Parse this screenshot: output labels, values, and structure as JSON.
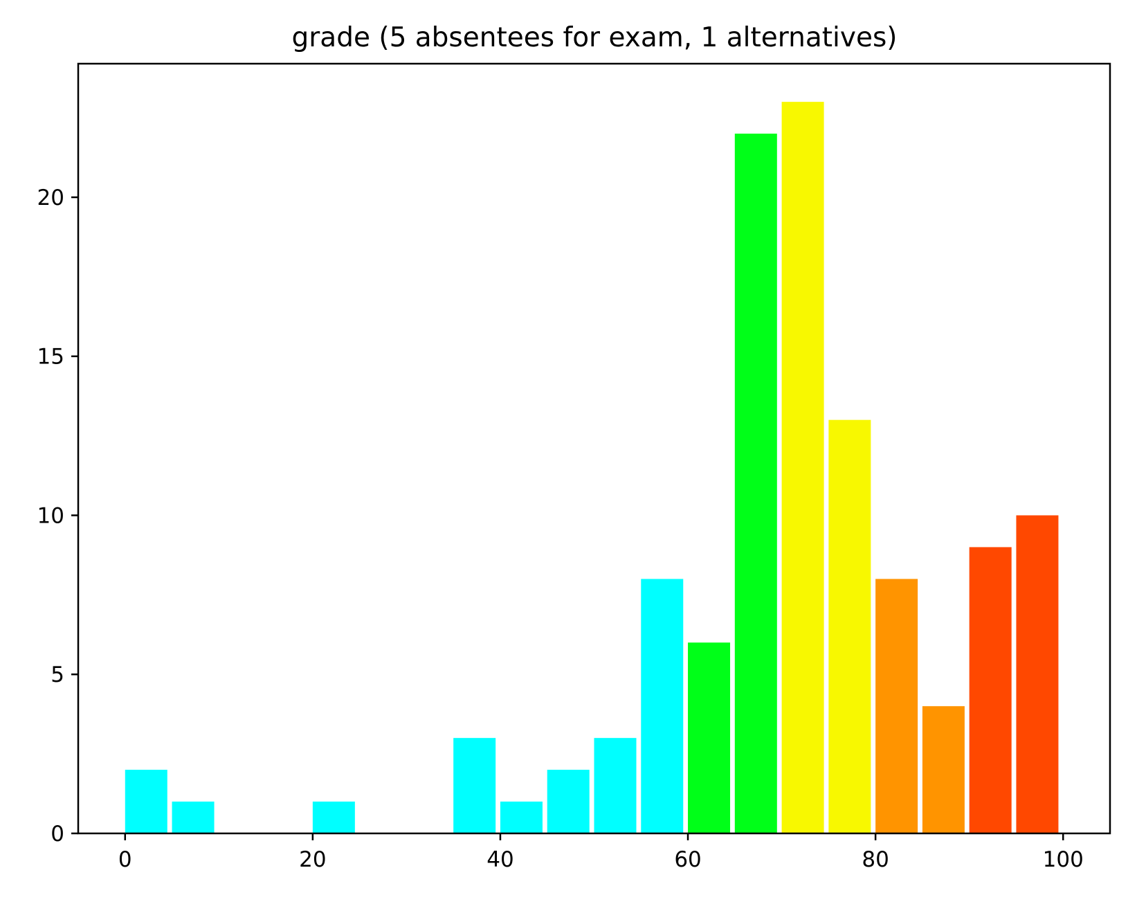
{
  "chart_data": {
    "type": "bar",
    "title": "grade (5 absentees for exam, 1 alternatives)",
    "xlabel": "",
    "ylabel": "",
    "xlim": [
      -5,
      105
    ],
    "ylim": [
      0,
      24.2
    ],
    "xticks": [
      0,
      20,
      40,
      60,
      80,
      100
    ],
    "yticks": [
      0,
      5,
      10,
      15,
      20
    ],
    "bin_width": 5,
    "bars": [
      {
        "x_start": 0,
        "x_end": 5,
        "value": 2,
        "color": "#00ffff"
      },
      {
        "x_start": 5,
        "x_end": 10,
        "value": 1,
        "color": "#00ffff"
      },
      {
        "x_start": 10,
        "x_end": 15,
        "value": 0,
        "color": "#00ffff"
      },
      {
        "x_start": 15,
        "x_end": 20,
        "value": 0,
        "color": "#00ffff"
      },
      {
        "x_start": 20,
        "x_end": 25,
        "value": 1,
        "color": "#00ffff"
      },
      {
        "x_start": 25,
        "x_end": 30,
        "value": 0,
        "color": "#00ffff"
      },
      {
        "x_start": 30,
        "x_end": 35,
        "value": 0,
        "color": "#00ffff"
      },
      {
        "x_start": 35,
        "x_end": 40,
        "value": 3,
        "color": "#00ffff"
      },
      {
        "x_start": 40,
        "x_end": 45,
        "value": 1,
        "color": "#00ffff"
      },
      {
        "x_start": 45,
        "x_end": 50,
        "value": 2,
        "color": "#00ffff"
      },
      {
        "x_start": 50,
        "x_end": 55,
        "value": 3,
        "color": "#00ffff"
      },
      {
        "x_start": 55,
        "x_end": 60,
        "value": 8,
        "color": "#00ffff"
      },
      {
        "x_start": 60,
        "x_end": 65,
        "value": 6,
        "color": "#00ff18"
      },
      {
        "x_start": 65,
        "x_end": 70,
        "value": 22,
        "color": "#00ff18"
      },
      {
        "x_start": 70,
        "x_end": 75,
        "value": 23,
        "color": "#f8f800"
      },
      {
        "x_start": 75,
        "x_end": 80,
        "value": 13,
        "color": "#f8f800"
      },
      {
        "x_start": 80,
        "x_end": 85,
        "value": 8,
        "color": "#ff9400"
      },
      {
        "x_start": 85,
        "x_end": 90,
        "value": 4,
        "color": "#ff9400"
      },
      {
        "x_start": 90,
        "x_end": 95,
        "value": 9,
        "color": "#ff4800"
      },
      {
        "x_start": 95,
        "x_end": 100,
        "value": 10,
        "color": "#ff4800"
      }
    ],
    "grid": false,
    "legend": "none"
  }
}
